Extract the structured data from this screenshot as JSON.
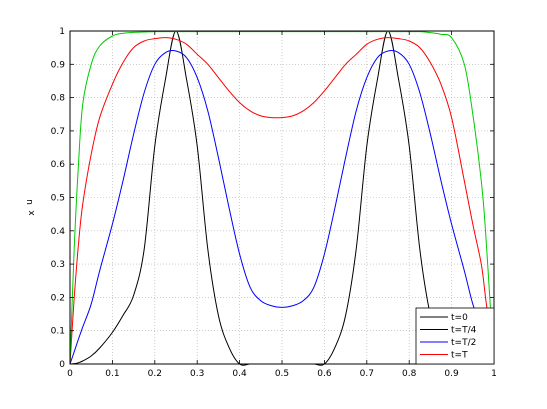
{
  "chart_data": {
    "type": "line",
    "xlim": [
      0,
      1
    ],
    "ylim": [
      0,
      1
    ],
    "grid": true,
    "xlabel": "x",
    "ylabel": "u",
    "xticks": [
      "0",
      "0.1",
      "0.2",
      "0.3",
      "0.4",
      "0.5",
      "0.6",
      "0.7",
      "0.8",
      "0.9",
      "1"
    ],
    "yticks": [
      "0",
      "0.1",
      "0.2",
      "0.3",
      "0.4",
      "0.5",
      "0.6",
      "0.7",
      "0.8",
      "0.9",
      "1"
    ],
    "legend_position": "bottom-right",
    "x": [
      0,
      0.01,
      0.02,
      0.03,
      0.05,
      0.07,
      0.1,
      0.125,
      0.15,
      0.175,
      0.2,
      0.225,
      0.25,
      0.275,
      0.3,
      0.325,
      0.35,
      0.375,
      0.4,
      0.425,
      0.45,
      0.475,
      0.5,
      0.525,
      0.55,
      0.575,
      0.6,
      0.625,
      0.65,
      0.675,
      0.7,
      0.725,
      0.75,
      0.775,
      0.8,
      0.825,
      0.85,
      0.875,
      0.9,
      0.93,
      0.95,
      0.97,
      0.98,
      0.99,
      1
    ],
    "series": [
      {
        "name": "t=0",
        "color": "#000000",
        "values": [
          0,
          0.001,
          0.004,
          0.009,
          0.024,
          0.048,
          0.095,
          0.146,
          0.206,
          0.345,
          0.655,
          0.854,
          1.0,
          0.854,
          0.655,
          0.345,
          0.146,
          0.05,
          0.0,
          0.0,
          0.0,
          0.0,
          0.0,
          0.0,
          0.0,
          0.0,
          0.0,
          0.05,
          0.146,
          0.345,
          0.655,
          0.854,
          1.0,
          0.854,
          0.655,
          0.345,
          0.146,
          0.05,
          0.02,
          0.015,
          0.01,
          0.005,
          0.003,
          0.001,
          0
        ]
      },
      {
        "name": "t=T/4",
        "color": "#0000ff",
        "values": [
          0,
          0.037,
          0.075,
          0.111,
          0.18,
          0.28,
          0.42,
          0.55,
          0.69,
          0.815,
          0.9,
          0.935,
          0.94,
          0.92,
          0.86,
          0.76,
          0.62,
          0.47,
          0.33,
          0.23,
          0.19,
          0.175,
          0.17,
          0.175,
          0.19,
          0.23,
          0.33,
          0.47,
          0.62,
          0.76,
          0.86,
          0.92,
          0.94,
          0.935,
          0.9,
          0.815,
          0.69,
          0.55,
          0.42,
          0.28,
          0.18,
          0.111,
          0.075,
          0.037,
          0
        ]
      },
      {
        "name": "t=T/2",
        "color": "#ff0000",
        "values": [
          0,
          0.2,
          0.36,
          0.48,
          0.63,
          0.74,
          0.84,
          0.905,
          0.95,
          0.97,
          0.977,
          0.98,
          0.975,
          0.96,
          0.93,
          0.9,
          0.86,
          0.82,
          0.785,
          0.76,
          0.745,
          0.74,
          0.74,
          0.745,
          0.76,
          0.785,
          0.82,
          0.86,
          0.9,
          0.93,
          0.96,
          0.975,
          0.98,
          0.977,
          0.97,
          0.95,
          0.905,
          0.84,
          0.74,
          0.55,
          0.42,
          0.3,
          0.2,
          0.1,
          0
        ]
      },
      {
        "name": "t=T",
        "color": "#00cc00",
        "values": [
          0,
          0.35,
          0.6,
          0.78,
          0.9,
          0.955,
          0.985,
          0.993,
          0.996,
          0.997,
          0.998,
          0.998,
          0.998,
          0.998,
          0.998,
          0.998,
          0.998,
          0.998,
          0.998,
          0.998,
          0.998,
          0.998,
          0.998,
          0.998,
          0.998,
          0.998,
          0.998,
          0.998,
          0.998,
          0.998,
          0.998,
          0.998,
          0.998,
          0.998,
          0.998,
          0.998,
          0.995,
          0.99,
          0.98,
          0.9,
          0.75,
          0.55,
          0.4,
          0.2,
          0
        ]
      }
    ]
  }
}
